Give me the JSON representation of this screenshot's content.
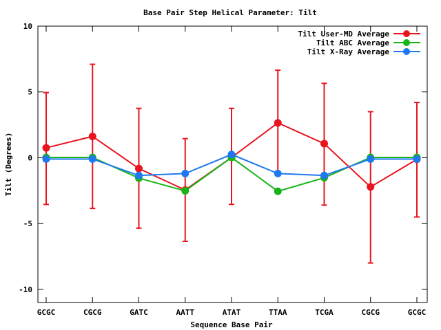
{
  "chart_data": {
    "type": "line",
    "title": "Base Pair Step Helical Parameter: Tilt",
    "xlabel": "Sequence Base Pair",
    "ylabel": "Tilt (Degrees)",
    "categories": [
      "GCGC",
      "CGCG",
      "GATC",
      "AATT",
      "ATAT",
      "TTAA",
      "TCGA",
      "CGCG",
      "GCGC"
    ],
    "ylim": [
      -11,
      10
    ],
    "yticks": [
      -10,
      -5,
      0,
      5,
      10
    ],
    "legend_position": "top-right",
    "series": [
      {
        "name": "Tilt User-MD Average",
        "color": "#e8141e",
        "values": [
          0.75,
          1.62,
          -0.82,
          -2.45,
          0.02,
          2.65,
          1.07,
          -2.22,
          -0.12
        ],
        "error_low": [
          -3.55,
          -3.85,
          -5.35,
          -6.35,
          -3.55,
          -1.35,
          -3.6,
          -8.0,
          -4.5
        ],
        "error_high": [
          4.95,
          7.1,
          3.75,
          1.45,
          3.75,
          6.65,
          5.65,
          3.5,
          4.2
        ]
      },
      {
        "name": "Tilt ABC Average",
        "color": "#18b418",
        "values": [
          0.02,
          0.02,
          -1.55,
          -2.52,
          0.02,
          -2.55,
          -1.52,
          0.02,
          0.02
        ]
      },
      {
        "name": "Tilt X-Ray Average",
        "color": "#1e78f0",
        "values": [
          -0.1,
          -0.1,
          -1.35,
          -1.2,
          0.25,
          -1.2,
          -1.35,
          -0.1,
          -0.1
        ]
      }
    ]
  }
}
